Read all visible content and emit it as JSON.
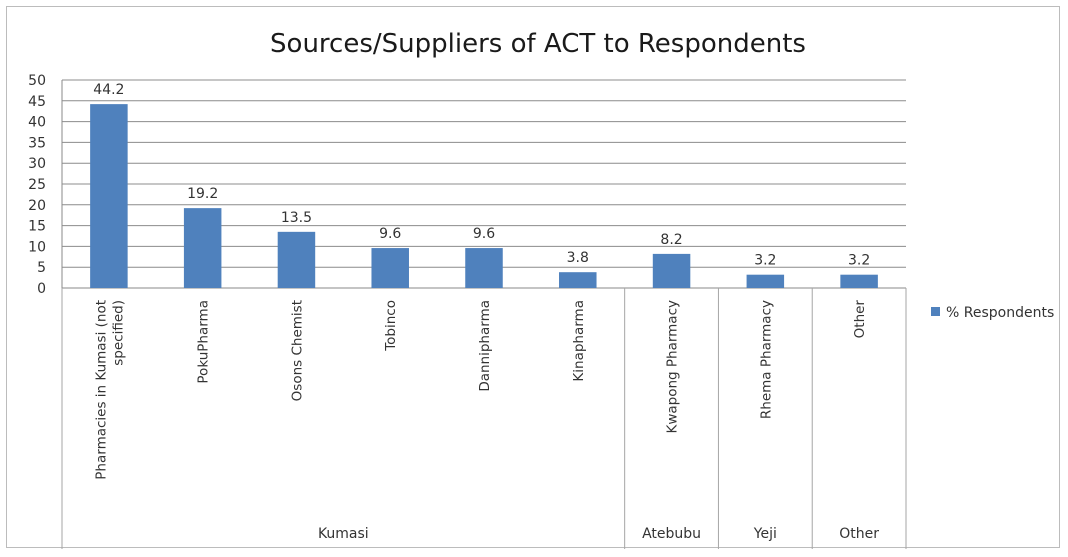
{
  "chart_data": {
    "type": "bar",
    "title": "Sources/Suppliers of ACT to Respondents",
    "categories": [
      "Pharmacies in Kumasi (not specified)",
      "PokuPharma",
      "Osons Chemist",
      "Tobinco",
      "Dannipharma",
      "Kinapharma",
      "Kwapong Pharmacy",
      "Rhema Pharmacy",
      "Other"
    ],
    "category_lines": [
      [
        "Pharmacies in Kumasi (not",
        "specified)"
      ],
      [
        "PokuPharma"
      ],
      [
        "Osons Chemist"
      ],
      [
        "Tobinco"
      ],
      [
        "Dannipharma"
      ],
      [
        "Kinapharma"
      ],
      [
        "Kwapong Pharmacy"
      ],
      [
        "Rhema Pharmacy"
      ],
      [
        "Other"
      ]
    ],
    "groups": [
      {
        "label": "Kumasi",
        "count": 6
      },
      {
        "label": "Atebubu",
        "count": 1
      },
      {
        "label": "Yeji",
        "count": 1
      },
      {
        "label": "Other",
        "count": 1
      }
    ],
    "series": [
      {
        "name": "% Respondents",
        "values": [
          44.2,
          19.2,
          13.5,
          9.6,
          9.6,
          3.8,
          8.2,
          3.2,
          3.2
        ],
        "labels": [
          "44.2",
          "19.2",
          "13.5",
          "9.6",
          "9.6",
          "3.8",
          "8.2",
          "3.2",
          "3.2"
        ],
        "color": "#4f81bd"
      }
    ],
    "ylim": [
      0,
      50
    ],
    "yticks": [
      "0",
      "5",
      "10",
      "15",
      "20",
      "25",
      "30",
      "35",
      "40",
      "45",
      "50"
    ],
    "grid": true,
    "legend_position": "right"
  }
}
